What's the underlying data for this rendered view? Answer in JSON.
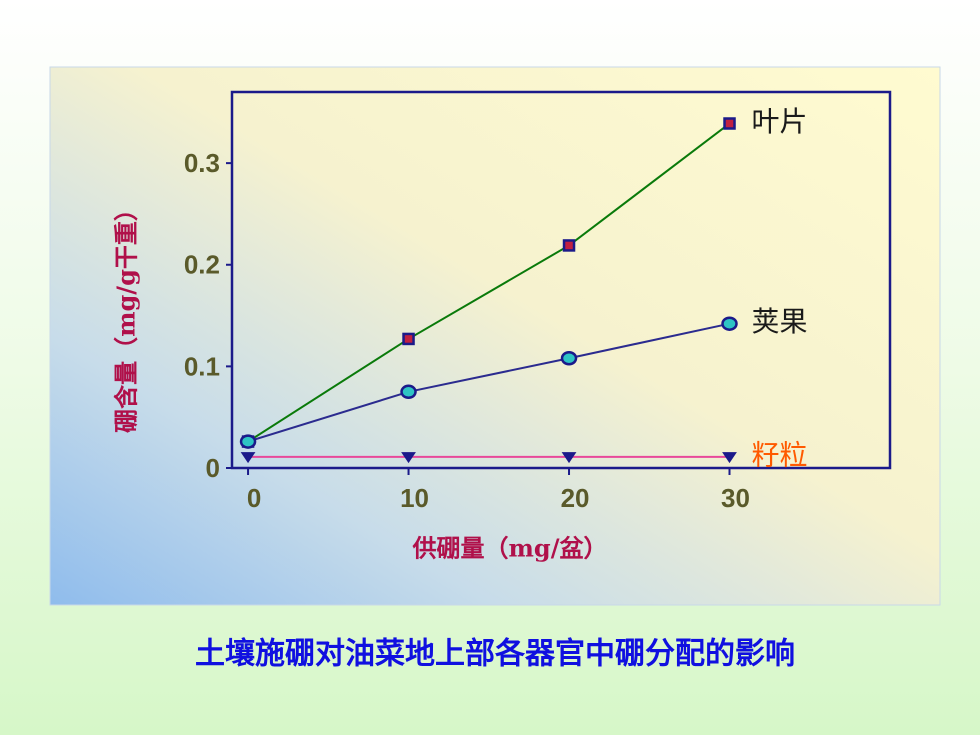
{
  "chart_data": {
    "type": "line",
    "caption": "土壤施硼对油菜地上部各器官中硼分配的影响",
    "x_label": "供硼量（mg/盆）",
    "y_label": "硼含量（mg/g干重）",
    "x": [
      0,
      10,
      20,
      30
    ],
    "xlim": [
      -1,
      40
    ],
    "xticks": [
      0,
      10,
      20,
      30
    ],
    "ylim": [
      0,
      0.37
    ],
    "yticks": [
      0,
      0.1,
      0.2,
      0.3
    ],
    "series": [
      {
        "name": "叶片",
        "color": "#1b1a8a",
        "line_color": "#0a7a0a",
        "label_color": "#1a1a1a",
        "marker": "square",
        "values": [
          0.026,
          0.127,
          0.219,
          0.339
        ]
      },
      {
        "name": "荚果",
        "color": "#2ec4c4",
        "line_color": "#2b2b8f",
        "label_color": "#1a1a1a",
        "marker": "circle",
        "values": [
          0.026,
          0.075,
          0.108,
          0.142
        ]
      },
      {
        "name": "籽粒",
        "color": "#1b1a8a",
        "line_color": "#e8489a",
        "label_color": "#ff5a00",
        "marker": "triangle",
        "values": [
          0.011,
          0.011,
          0.011,
          0.011
        ]
      }
    ]
  }
}
